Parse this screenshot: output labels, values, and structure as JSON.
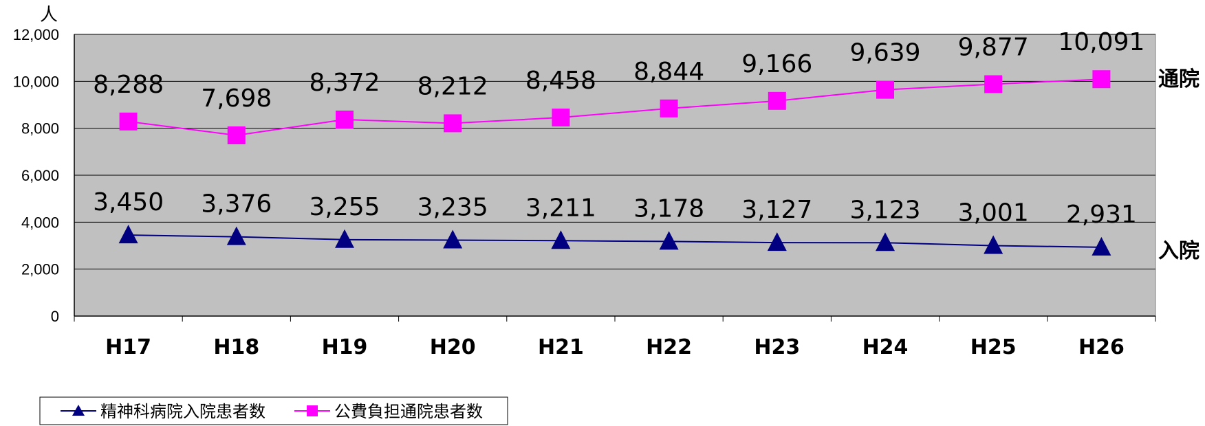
{
  "chart_data": {
    "type": "line",
    "ylabel": "人",
    "ylim": [
      0,
      12000
    ],
    "yticks": [
      "0",
      "2,000",
      "4,000",
      "6,000",
      "8,000",
      "10,000",
      "12,000"
    ],
    "ytick_values": [
      0,
      2000,
      4000,
      6000,
      8000,
      10000,
      12000
    ],
    "categories": [
      "H17",
      "H18",
      "H19",
      "H20",
      "H21",
      "H22",
      "H23",
      "H24",
      "H25",
      "H26"
    ],
    "grid": true,
    "legend_position": "bottom-left",
    "series": [
      {
        "name": "精神科病院入院患者数",
        "side_label": "入院",
        "marker": "triangle",
        "color": "#000080",
        "values": [
          3450,
          3376,
          3255,
          3235,
          3211,
          3178,
          3127,
          3123,
          3001,
          2931
        ],
        "labels": [
          "3,450",
          "3,376",
          "3,255",
          "3,235",
          "3,211",
          "3,178",
          "3,127",
          "3,123",
          "3,001",
          "2,931"
        ]
      },
      {
        "name": "公費負担通院患者数",
        "side_label": "通院",
        "marker": "square",
        "color": "#ff00ff",
        "values": [
          8288,
          7698,
          8372,
          8212,
          8458,
          8844,
          9166,
          9639,
          9877,
          10091
        ],
        "labels": [
          "8,288",
          "7,698",
          "8,372",
          "8,212",
          "8,458",
          "8,844",
          "9,166",
          "9,639",
          "9,877",
          "10,091"
        ]
      }
    ],
    "plot_bg": "#c0c0c0"
  }
}
